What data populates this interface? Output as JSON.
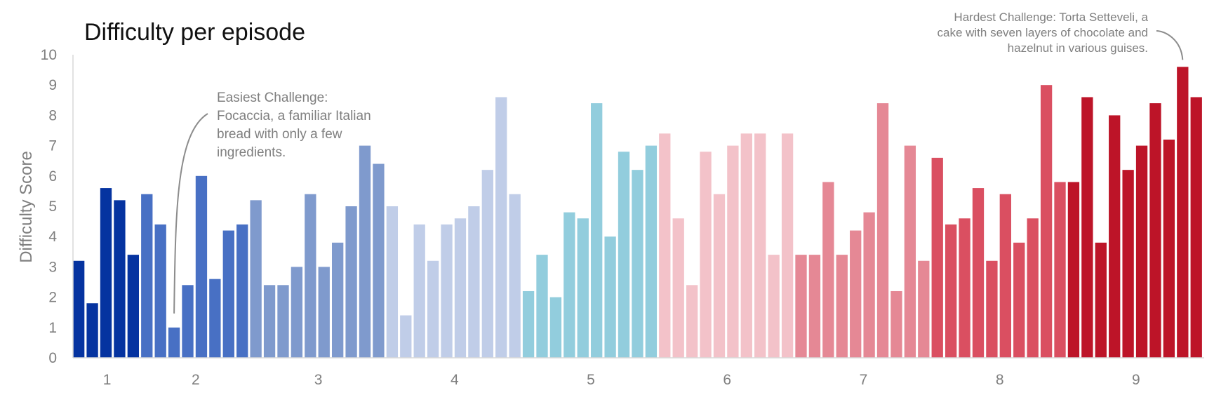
{
  "chart_data": {
    "type": "bar",
    "title": "Difficulty per episode",
    "xlabel": "",
    "ylabel": "Difficulty Score",
    "ylim": [
      0,
      10
    ],
    "yticks": [
      "0",
      "1",
      "2",
      "3",
      "4",
      "5",
      "6",
      "7",
      "8",
      "9",
      "10"
    ],
    "grid": false,
    "legend": "none",
    "series": [
      {
        "name": "",
        "season": "1",
        "color": "#0533a0",
        "values": [
          3.2,
          1.8,
          5.6,
          5.2,
          3.4
        ]
      },
      {
        "name": "",
        "season": "2",
        "color": "#4870c4",
        "values": [
          5.4,
          4.4,
          1.0,
          2.4,
          6.0,
          2.6,
          4.2,
          4.4
        ]
      },
      {
        "name": "",
        "season": "3",
        "color": "#7f9acd",
        "values": [
          5.2,
          2.4,
          2.4,
          3.0,
          5.4,
          3.0,
          3.8,
          5.0,
          7.0,
          6.4
        ]
      },
      {
        "name": "",
        "season": "4",
        "color": "#c0cde8",
        "values": [
          5.0,
          1.4,
          4.4,
          3.2,
          4.4,
          4.6,
          5.0,
          6.2,
          8.6,
          5.4
        ]
      },
      {
        "name": "",
        "season": "5",
        "color": "#92cddd",
        "values": [
          2.2,
          3.4,
          2.0,
          4.8,
          4.6,
          8.4,
          4.0,
          6.8,
          6.2,
          7.0
        ]
      },
      {
        "name": "",
        "season": "6",
        "color": "#f3c2c9",
        "values": [
          7.4,
          4.6,
          2.4,
          6.8,
          5.4,
          7.0,
          7.4,
          7.4,
          3.4,
          7.4
        ]
      },
      {
        "name": "",
        "season": "7",
        "color": "#e58895",
        "values": [
          3.4,
          3.4,
          5.8,
          3.4,
          4.2,
          4.8,
          8.4,
          2.2,
          7.0,
          3.2
        ]
      },
      {
        "name": "",
        "season": "8",
        "color": "#da4f61",
        "values": [
          6.6,
          4.4,
          4.6,
          5.6,
          3.2,
          5.4,
          3.8,
          4.6,
          9.0,
          5.8
        ]
      },
      {
        "name": "",
        "season": "9",
        "color": "#bd1428",
        "values": [
          5.8,
          8.6,
          3.8,
          8.0,
          6.2,
          7.0,
          8.4,
          7.2,
          9.6,
          8.6
        ]
      }
    ],
    "annotations": [
      {
        "id": "easiest",
        "season_index": 1,
        "bar_index": 2,
        "lines": [
          "Easiest Challenge:",
          "Focaccia, a familiar Italian",
          "bread with only a few",
          "ingredients."
        ]
      },
      {
        "id": "hardest",
        "season_index": 8,
        "bar_index": 8,
        "lines": [
          "Hardest Challenge: Torta Setteveli, a",
          "cake with seven layers of chocolate and",
          "hazelnut in various guises."
        ]
      }
    ]
  }
}
